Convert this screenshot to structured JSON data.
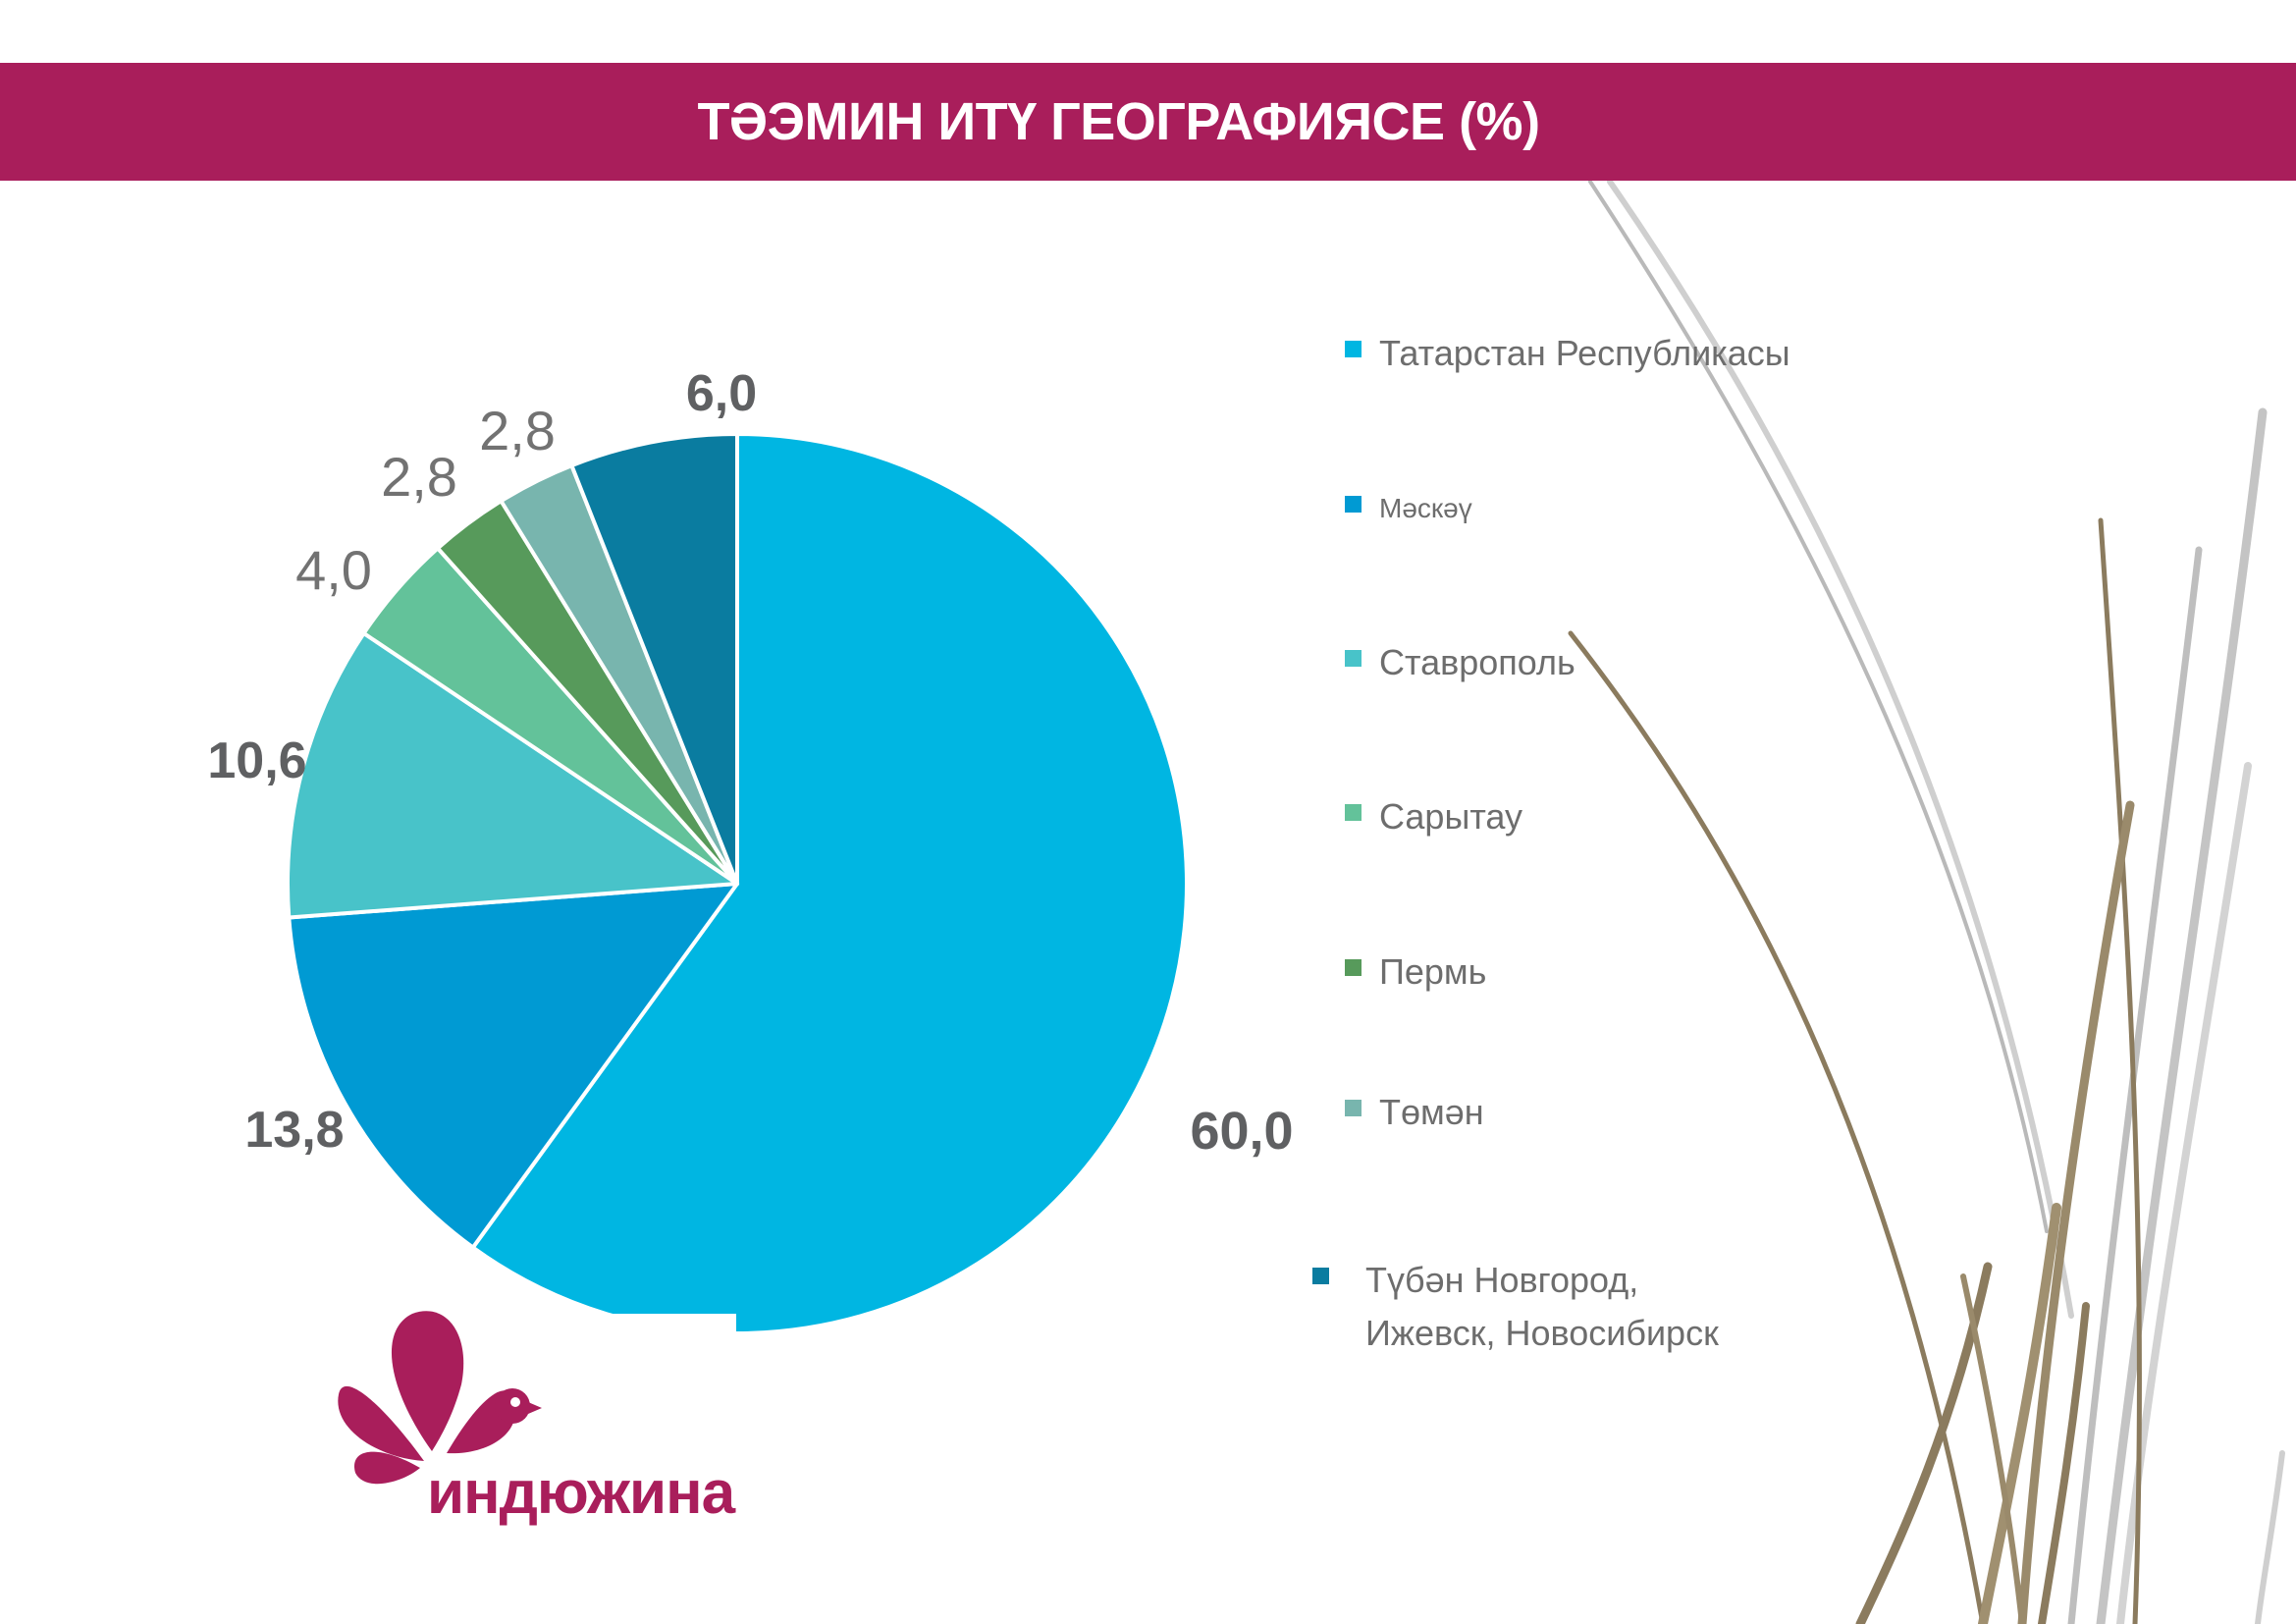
{
  "banner": {
    "title": "ТӘЭМИН ИТҮ ГЕОГРАФИЯСЕ (%)"
  },
  "chart_data": {
    "type": "pie",
    "categories": [
      "Татарстан Республикасы",
      "Мәскәү",
      "Ставрополь",
      "Сарытау",
      "Пермь",
      "Төмән",
      "Түбән Новгород, Ижевск, Новосибирск"
    ],
    "values": [
      60.0,
      13.8,
      10.6,
      4.0,
      2.8,
      2.8,
      6.0
    ],
    "value_labels": [
      "60,0",
      "13,8",
      "10,6",
      "4,0",
      "2,8",
      "2,8",
      "6,0"
    ],
    "colors": [
      "#00b6e2",
      "#009ad3",
      "#48c3c9",
      "#63c29a",
      "#579a5b",
      "#78b5ae",
      "#0a7ca0"
    ],
    "legend_position": "right"
  },
  "logo": {
    "text": "индюжина",
    "icon": "turkey-feather-logo"
  },
  "decoration": {
    "icon": "grass-stems"
  }
}
